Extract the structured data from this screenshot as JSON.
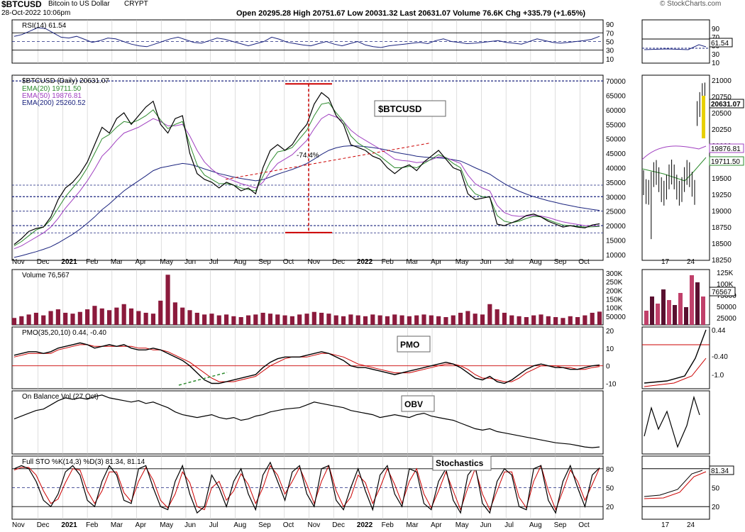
{
  "header": {
    "symbol": "$BTCUSD",
    "name": "Bitcoin to US Dollar",
    "exchange": "CRYPT",
    "date": "28-Oct-2022 10:06pm",
    "ohlc": "Open 20295.28   High 20751.67   Low 20031.32   Last 20631.07   Volume 76.6K   Chg +335.79 (+1.65%)",
    "credit": "© StockCharts.com"
  },
  "colors": {
    "price": "#000000",
    "ema20": "#2e8b2e",
    "ema50": "#a040c0",
    "ema200": "#1a237e",
    "grid": "#c8c8c8",
    "dash": "#1a237e",
    "red": "#cc0000",
    "volume": "#8b1a3c",
    "rsi": "#1a237e"
  },
  "x_axis": {
    "labels": [
      "Nov",
      "Dec",
      "2021",
      "Feb",
      "Mar",
      "Apr",
      "May",
      "Jun",
      "Jul",
      "Aug",
      "Sep",
      "Oct",
      "Nov",
      "Dec",
      "2022",
      "Feb",
      "Mar",
      "Apr",
      "May",
      "Jun",
      "Jul",
      "Aug",
      "Sep",
      "Oct"
    ],
    "bold": [
      "2021",
      "2022"
    ],
    "inset_labels": [
      "17",
      "24"
    ]
  },
  "chart_data": [
    {
      "type": "line",
      "panel": "rsi",
      "label": "RSI(14) 61.54",
      "yticks": [
        90,
        70,
        50,
        30,
        10
      ],
      "ylim": [
        0,
        100
      ],
      "last_value": "61.54",
      "values": [
        62,
        66,
        74,
        82,
        80,
        70,
        60,
        58,
        62,
        55,
        48,
        52,
        58,
        56,
        50,
        44,
        40,
        38,
        44,
        50,
        56,
        60,
        54,
        48,
        46,
        52,
        58,
        55,
        50,
        45,
        40,
        45,
        50,
        60,
        55,
        48,
        45,
        42,
        40,
        45,
        50,
        44,
        40,
        45,
        50,
        42,
        38,
        36,
        40,
        42,
        44,
        46,
        48,
        45,
        52,
        56,
        50,
        48,
        45,
        46,
        48,
        50,
        52,
        48,
        46,
        44,
        50,
        56,
        52,
        48,
        46,
        48,
        50,
        52,
        55,
        62
      ]
    },
    {
      "type": "line",
      "panel": "price",
      "label": "$BTCUSD (Daily) 20631.07",
      "legend": [
        "EMA(20) 19711.50",
        "EMA(50) 19876.81",
        "EMA(200) 25260.52"
      ],
      "yticks": [
        70000,
        65000,
        60000,
        55000,
        50000,
        45000,
        40000,
        35000,
        30000,
        25000,
        20000,
        15000,
        10000
      ],
      "ylim": [
        8000,
        72000
      ],
      "annotations": [
        "$BTCUSD",
        "-74.4%"
      ],
      "price": [
        13500,
        15500,
        18000,
        19000,
        19500,
        23000,
        29000,
        33000,
        35000,
        38000,
        42000,
        48000,
        54000,
        52000,
        57000,
        59000,
        55000,
        58000,
        61000,
        63000,
        55000,
        52000,
        57000,
        58000,
        45000,
        38000,
        36000,
        35000,
        33000,
        35000,
        34000,
        32000,
        33000,
        31000,
        40000,
        46000,
        48000,
        46000,
        48000,
        52000,
        55000,
        62000,
        66000,
        64000,
        58000,
        55000,
        48000,
        47000,
        46000,
        44000,
        43000,
        40000,
        38000,
        40000,
        41000,
        39000,
        42000,
        44000,
        46000,
        43000,
        40000,
        39000,
        31000,
        29000,
        29500,
        30000,
        20500,
        20000,
        21000,
        22000,
        23500,
        24000,
        23000,
        21500,
        20500,
        19500,
        20000,
        19500,
        19200,
        20200,
        20631
      ],
      "ema20": [
        13000,
        14500,
        16500,
        18500,
        19500,
        22000,
        26000,
        30000,
        33000,
        36000,
        40000,
        45000,
        50000,
        51500,
        54000,
        56000,
        55500,
        56500,
        58000,
        60000,
        56500,
        53500,
        55000,
        56000,
        48000,
        41000,
        37500,
        36000,
        34500,
        34500,
        34000,
        33000,
        32500,
        32000,
        37000,
        42000,
        45500,
        46000,
        47000,
        50000,
        53000,
        58000,
        62000,
        62500,
        59000,
        56000,
        51000,
        48500,
        47000,
        45500,
        44000,
        42000,
        40000,
        40000,
        40500,
        40000,
        41500,
        43000,
        44500,
        43500,
        41500,
        40000,
        34000,
        31000,
        30000,
        29800,
        23500,
        21500,
        21000,
        21500,
        22500,
        23200,
        23000,
        22000,
        21000,
        20200,
        20000,
        19800,
        19500,
        19600,
        19711
      ],
      "ema50": [
        12000,
        13000,
        14500,
        16000,
        17500,
        19500,
        22500,
        26000,
        29000,
        32000,
        35500,
        39500,
        44000,
        46500,
        49500,
        52000,
        53000,
        54000,
        55500,
        57000,
        56000,
        54500,
        54500,
        55000,
        51000,
        46000,
        42000,
        39500,
        37500,
        36500,
        35500,
        34500,
        33800,
        33000,
        35000,
        38500,
        41500,
        43000,
        44500,
        47000,
        49500,
        53500,
        57000,
        58500,
        57500,
        56000,
        53000,
        51000,
        49500,
        48000,
        46500,
        44800,
        43000,
        42500,
        42300,
        41800,
        42000,
        42800,
        43800,
        43500,
        42500,
        41500,
        37500,
        34500,
        33000,
        32000,
        27000,
        24500,
        23500,
        23200,
        23300,
        23500,
        23300,
        22800,
        22000,
        21300,
        20800,
        20400,
        20000,
        19900,
        19877
      ],
      "ema200": [
        9000,
        9600,
        10300,
        11000,
        11800,
        12700,
        14000,
        15500,
        17000,
        18800,
        20800,
        23000,
        25500,
        27500,
        29800,
        32000,
        33800,
        35500,
        37200,
        39000,
        40000,
        40500,
        41000,
        41500,
        41200,
        40500,
        39600,
        38800,
        38000,
        37400,
        36800,
        36300,
        35900,
        35500,
        35900,
        36800,
        37800,
        38600,
        39400,
        40400,
        41500,
        43000,
        44600,
        46000,
        46900,
        47400,
        47600,
        47500,
        47300,
        47000,
        46600,
        46100,
        45400,
        44900,
        44500,
        44000,
        43700,
        43500,
        43400,
        43200,
        42800,
        42300,
        41200,
        40000,
        38900,
        37800,
        36100,
        34500,
        33100,
        31900,
        30900,
        30000,
        29300,
        28600,
        28000,
        27400,
        26900,
        26400,
        26000,
        25600,
        25260
      ]
    },
    {
      "type": "bar",
      "panel": "volume",
      "label": "Volume 76,567",
      "yticks": [
        "300K",
        "250K",
        "200K",
        "150K",
        "100K",
        "50000"
      ],
      "ylim": [
        0,
        320000
      ],
      "values": [
        40000,
        50000,
        60000,
        70000,
        55000,
        80000,
        90000,
        70000,
        65000,
        75000,
        90000,
        110000,
        95000,
        85000,
        100000,
        120000,
        95000,
        80000,
        70000,
        65000,
        140000,
        290000,
        130000,
        100000,
        85000,
        70000,
        60000,
        65000,
        55000,
        60000,
        50000,
        45000,
        55000,
        60000,
        70000,
        65000,
        60000,
        55000,
        50000,
        60000,
        65000,
        75000,
        70000,
        65000,
        55000,
        50000,
        60000,
        55000,
        50000,
        60000,
        55000,
        50000,
        60000,
        55000,
        50000,
        55000,
        60000,
        55000,
        50000,
        45000,
        55000,
        70000,
        80000,
        65000,
        60000,
        120000,
        90000,
        70000,
        55000,
        50000,
        45000,
        55000,
        60000,
        50000,
        45000,
        40000,
        50000,
        45000,
        55000,
        70000,
        76567
      ]
    },
    {
      "type": "line",
      "panel": "pmo",
      "label": "PMO(35,20,10) 0.44, -0.40",
      "yticks": [
        20,
        10,
        0,
        -10
      ],
      "ylim": [
        -13,
        22
      ],
      "annotations": [
        "PMO"
      ],
      "pmo": [
        6,
        7,
        8,
        8,
        7,
        8,
        10,
        11,
        12,
        13,
        12,
        10,
        11,
        12,
        11,
        12,
        10,
        9,
        9,
        10,
        9,
        7,
        5,
        3,
        0,
        -4,
        -8,
        -10,
        -10,
        -9,
        -8,
        -7,
        -6,
        -5,
        -1,
        2,
        4,
        5,
        5,
        5,
        6,
        7,
        8,
        7,
        5,
        3,
        0,
        -1,
        -1,
        -2,
        -3,
        -4,
        -5,
        -4,
        -3,
        -2,
        -1,
        0,
        1,
        2,
        1,
        -1,
        -4,
        -7,
        -8,
        -6,
        -9,
        -10,
        -8,
        -5,
        -2,
        0,
        1,
        0,
        -1,
        -1,
        -2,
        -2,
        -1,
        0,
        0.44
      ],
      "signal": [
        5,
        6,
        7,
        7,
        7,
        7,
        9,
        10,
        11,
        12,
        12,
        11,
        11,
        11,
        11,
        11,
        11,
        10,
        10,
        9,
        9,
        8,
        6,
        4,
        2,
        -1,
        -4,
        -7,
        -9,
        -9,
        -9,
        -8,
        -7,
        -6,
        -3,
        0,
        2,
        4,
        5,
        5,
        5,
        6,
        7,
        7,
        6,
        5,
        3,
        1,
        0,
        -1,
        -2,
        -3,
        -4,
        -4,
        -4,
        -3,
        -2,
        -1,
        0,
        1,
        1,
        0,
        -2,
        -5,
        -7,
        -7,
        -8,
        -9,
        -9,
        -7,
        -4,
        -2,
        0,
        0,
        0,
        -1,
        -1,
        -2,
        -2,
        -1,
        -0.4
      ]
    },
    {
      "type": "line",
      "panel": "obv",
      "label": "On Balance Vol (27 Oct)",
      "annotations": [
        "OBV"
      ],
      "values": [
        60,
        64,
        68,
        72,
        74,
        80,
        86,
        90,
        88,
        90,
        88,
        92,
        94,
        90,
        88,
        86,
        84,
        86,
        82,
        84,
        80,
        76,
        70,
        66,
        64,
        62,
        64,
        66,
        62,
        60,
        62,
        58,
        60,
        64,
        66,
        70,
        72,
        74,
        75,
        76,
        80,
        84,
        82,
        80,
        78,
        76,
        72,
        70,
        68,
        66,
        62,
        64,
        66,
        64,
        62,
        66,
        68,
        64,
        62,
        60,
        58,
        54,
        50,
        46,
        44,
        46,
        42,
        40,
        38,
        36,
        34,
        32,
        30,
        28,
        26,
        25,
        24,
        22,
        20,
        19,
        20
      ]
    },
    {
      "type": "line",
      "panel": "stochastics",
      "label": "Full STO %K(14,3) %D(3) 81.34, 81.14",
      "yticks": [
        80,
        50,
        20
      ],
      "ylim": [
        0,
        100
      ],
      "annotations": [
        "Stochastics"
      ],
      "k": [
        80,
        85,
        80,
        60,
        30,
        20,
        40,
        75,
        85,
        70,
        30,
        20,
        60,
        85,
        70,
        30,
        25,
        80,
        85,
        50,
        20,
        15,
        60,
        85,
        40,
        10,
        20,
        70,
        50,
        20,
        60,
        80,
        40,
        15,
        70,
        90,
        60,
        30,
        75,
        85,
        40,
        20,
        80,
        85,
        30,
        15,
        50,
        80,
        45,
        15,
        70,
        85,
        40,
        20,
        80,
        75,
        25,
        15,
        60,
        80,
        30,
        10,
        70,
        85,
        25,
        10,
        60,
        80,
        70,
        20,
        15,
        80,
        85,
        30,
        10,
        60,
        85,
        50,
        20,
        70,
        81.34
      ],
      "d": [
        78,
        82,
        82,
        70,
        45,
        25,
        32,
        58,
        80,
        78,
        45,
        25,
        45,
        75,
        75,
        42,
        28,
        60,
        82,
        62,
        30,
        18,
        40,
        75,
        58,
        20,
        15,
        50,
        60,
        30,
        45,
        72,
        55,
        25,
        50,
        85,
        70,
        40,
        60,
        82,
        55,
        25,
        60,
        85,
        45,
        20,
        35,
        70,
        58,
        25,
        50,
        80,
        55,
        25,
        60,
        80,
        40,
        18,
        45,
        75,
        45,
        15,
        50,
        80,
        40,
        15,
        45,
        75,
        75,
        35,
        18,
        60,
        85,
        45,
        15,
        45,
        78,
        60,
        30,
        55,
        81.14
      ]
    }
  ],
  "insets": {
    "rsi_value": "61.54",
    "price_labels": [
      "21000",
      "20750",
      "20500",
      "20250",
      "20000",
      "19750",
      "19500",
      "19250",
      "19000",
      "18750",
      "18500",
      "18250"
    ],
    "price_badges": [
      "20631.07",
      "19876.81",
      "19711.50"
    ],
    "volume_labels": [
      "125K",
      "100K",
      "75000",
      "50000",
      "25000"
    ],
    "volume_badge": "76567",
    "pmo_labels": [
      "0.44",
      "-0.40",
      "-1.0"
    ],
    "sto_badge": "81.34"
  }
}
